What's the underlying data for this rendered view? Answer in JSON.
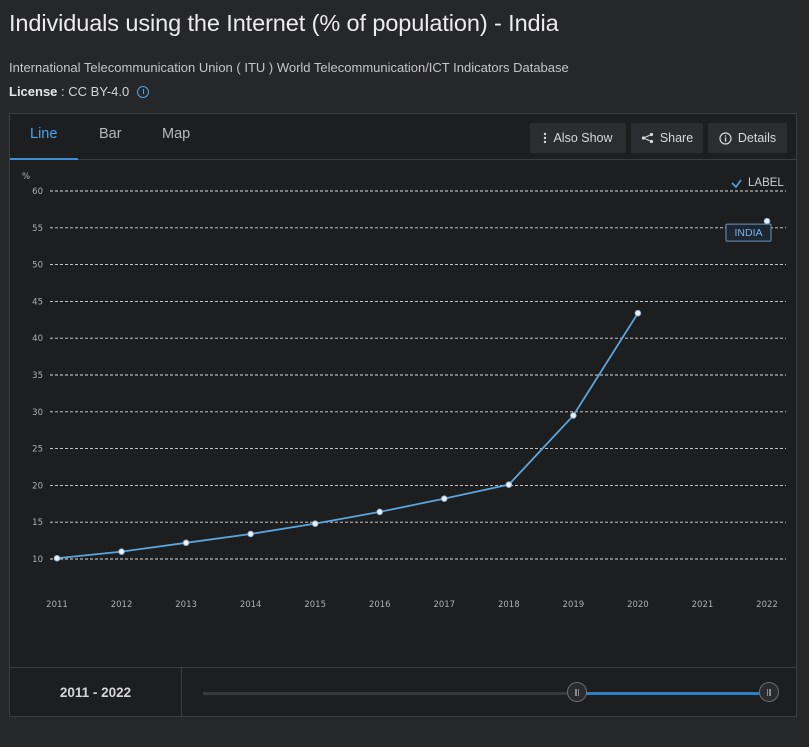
{
  "page": {
    "title": "Individuals using the Internet (% of population) - India",
    "source": "International Telecommunication Union ( ITU ) World Telecommunication/ICT Indicators Database",
    "license_label": "License",
    "license_value": " : CC BY-4.0"
  },
  "tabs": [
    {
      "label": "Line",
      "active": true
    },
    {
      "label": "Bar",
      "active": false
    },
    {
      "label": "Map",
      "active": false
    }
  ],
  "toolbar": {
    "also_show_label": "Also Show",
    "share_label": "Share",
    "details_label": "Details"
  },
  "label_toggle": {
    "label": "LABEL",
    "checked": true
  },
  "colors": {
    "accent": "#4aa3e8",
    "line": "#5aa5de",
    "grid": "#dcdcdc"
  },
  "chart_data": {
    "type": "line",
    "ylabel": "%",
    "ylim": [
      10,
      60
    ],
    "yticks": [
      10,
      15,
      20,
      25,
      30,
      35,
      40,
      45,
      50,
      55,
      60
    ],
    "x": [
      "2011",
      "2012",
      "2013",
      "2014",
      "2015",
      "2016",
      "2017",
      "2018",
      "2019",
      "2020",
      "2021",
      "2022"
    ],
    "grid": true,
    "series": [
      {
        "name": "INDIA",
        "values": [
          10.1,
          11.0,
          12.2,
          13.4,
          14.8,
          16.4,
          18.2,
          20.1,
          29.5,
          43.4,
          null,
          55.9
        ],
        "connected_through": 9
      }
    ]
  },
  "range": {
    "label": "2011 - 2022",
    "handle_start_frac": 0.66,
    "handle_end_frac": 1.0
  }
}
